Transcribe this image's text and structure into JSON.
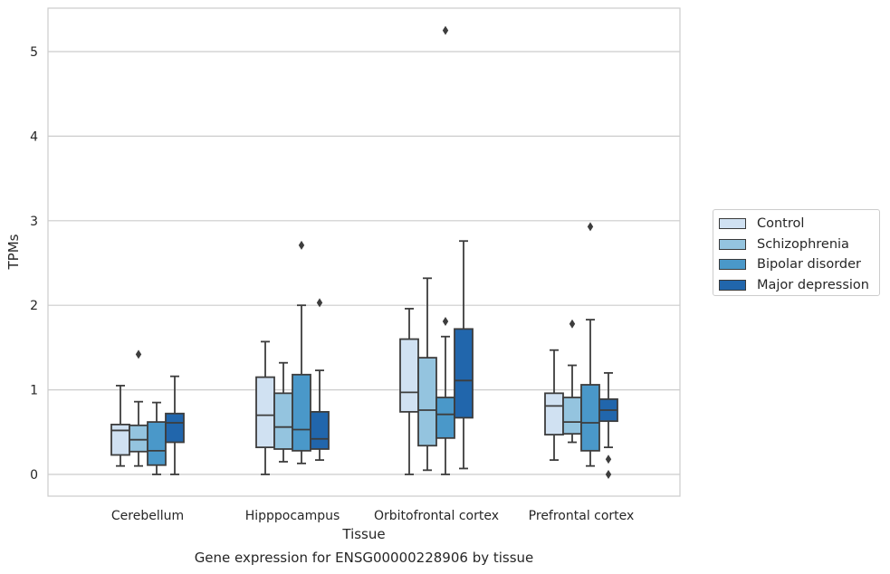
{
  "chart_data": {
    "type": "box",
    "title": "Gene expression for ENSG00000228906 by tissue",
    "xlabel": "Tissue",
    "ylabel": "TPMs",
    "ylim": [
      -0.25,
      5.5
    ],
    "yticks": [
      0,
      1,
      2,
      3,
      4,
      5
    ],
    "grid": "horizontal",
    "legend_position": "right",
    "categories": [
      "Cerebellum",
      "Hipppocampus",
      "Orbitofrontal cortex",
      "Prefrontal cortex"
    ],
    "series": [
      {
        "name": "Control",
        "color": "#d0e1f2",
        "boxes": [
          {
            "whislo": 0.1,
            "q1": 0.23,
            "med": 0.52,
            "q3": 0.59,
            "whishi": 1.05,
            "fliers": []
          },
          {
            "whislo": 0.0,
            "q1": 0.32,
            "med": 0.7,
            "q3": 1.15,
            "whishi": 1.57,
            "fliers": []
          },
          {
            "whislo": 0.0,
            "q1": 0.74,
            "med": 0.97,
            "q3": 1.6,
            "whishi": 1.96,
            "fliers": []
          },
          {
            "whislo": 0.17,
            "q1": 0.47,
            "med": 0.81,
            "q3": 0.96,
            "whishi": 1.47,
            "fliers": []
          }
        ]
      },
      {
        "name": "Schizophrenia",
        "color": "#94c4df",
        "boxes": [
          {
            "whislo": 0.1,
            "q1": 0.27,
            "med": 0.41,
            "q3": 0.58,
            "whishi": 0.86,
            "fliers": [
              1.42
            ]
          },
          {
            "whislo": 0.15,
            "q1": 0.3,
            "med": 0.56,
            "q3": 0.96,
            "whishi": 1.32,
            "fliers": []
          },
          {
            "whislo": 0.05,
            "q1": 0.34,
            "med": 0.76,
            "q3": 1.38,
            "whishi": 2.32,
            "fliers": []
          },
          {
            "whislo": 0.38,
            "q1": 0.48,
            "med": 0.62,
            "q3": 0.91,
            "whishi": 1.29,
            "fliers": [
              1.78
            ]
          }
        ]
      },
      {
        "name": "Bipolar disorder",
        "color": "#4a98c9",
        "boxes": [
          {
            "whislo": 0.0,
            "q1": 0.11,
            "med": 0.28,
            "q3": 0.62,
            "whishi": 0.85,
            "fliers": []
          },
          {
            "whislo": 0.13,
            "q1": 0.28,
            "med": 0.53,
            "q3": 1.18,
            "whishi": 2.0,
            "fliers": [
              2.71
            ]
          },
          {
            "whislo": 0.0,
            "q1": 0.43,
            "med": 0.71,
            "q3": 0.91,
            "whishi": 1.63,
            "fliers": [
              1.81,
              5.25
            ]
          },
          {
            "whislo": 0.1,
            "q1": 0.28,
            "med": 0.61,
            "q3": 1.06,
            "whishi": 1.83,
            "fliers": [
              2.93
            ]
          }
        ]
      },
      {
        "name": "Major depression",
        "color": "#2166ac",
        "boxes": [
          {
            "whislo": 0.0,
            "q1": 0.38,
            "med": 0.61,
            "q3": 0.72,
            "whishi": 1.16,
            "fliers": []
          },
          {
            "whislo": 0.17,
            "q1": 0.3,
            "med": 0.42,
            "q3": 0.74,
            "whishi": 1.23,
            "fliers": [
              2.03
            ]
          },
          {
            "whislo": 0.07,
            "q1": 0.67,
            "med": 1.11,
            "q3": 1.72,
            "whishi": 2.76,
            "fliers": []
          },
          {
            "whislo": 0.32,
            "q1": 0.63,
            "med": 0.76,
            "q3": 0.89,
            "whishi": 1.2,
            "fliers": [
              0.18,
              0.0
            ]
          }
        ]
      }
    ]
  }
}
